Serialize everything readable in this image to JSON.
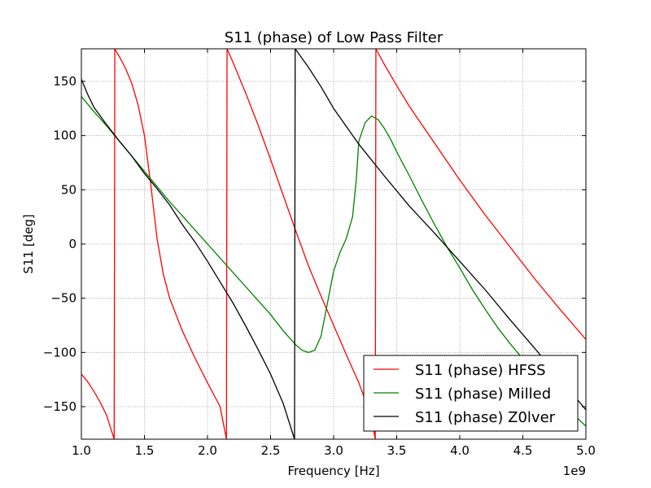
{
  "chart_data": {
    "type": "line",
    "title": "S11 (phase) of Low Pass Filter",
    "xlabel": "Frequency [Hz]",
    "ylabel": "S11 [deg]",
    "x_scale_label": "1e9",
    "xlim": [
      1.0,
      5.0
    ],
    "ylim": [
      -180,
      180
    ],
    "xticks": [
      1.0,
      1.5,
      2.0,
      2.5,
      3.0,
      3.5,
      4.0,
      4.5,
      5.0
    ],
    "xtick_labels": [
      "1.0",
      "1.5",
      "2.0",
      "2.5",
      "3.0",
      "3.5",
      "4.0",
      "4.5",
      "5.0"
    ],
    "yticks": [
      150,
      100,
      50,
      0,
      -50,
      -100,
      -150
    ],
    "ytick_labels": [
      "150",
      "100",
      "50",
      "0",
      "−50",
      "−100",
      "−150"
    ],
    "grid": true,
    "legend_position": "lower-right",
    "series": [
      {
        "name": "S11 (phase) HFSS",
        "color": "#ff0000",
        "points": [
          [
            1.0,
            -120
          ],
          [
            1.05,
            -127
          ],
          [
            1.1,
            -136
          ],
          [
            1.15,
            -146
          ],
          [
            1.2,
            -158
          ],
          [
            1.26,
            -180
          ],
          [
            1.265,
            180
          ],
          [
            1.3,
            173
          ],
          [
            1.35,
            162
          ],
          [
            1.4,
            148
          ],
          [
            1.45,
            128
          ],
          [
            1.5,
            100
          ],
          [
            1.55,
            55
          ],
          [
            1.6,
            5
          ],
          [
            1.65,
            -28
          ],
          [
            1.7,
            -50
          ],
          [
            1.8,
            -80
          ],
          [
            1.9,
            -105
          ],
          [
            2.0,
            -128
          ],
          [
            2.1,
            -150
          ],
          [
            2.15,
            -180
          ],
          [
            2.155,
            180
          ],
          [
            2.2,
            168
          ],
          [
            2.3,
            140
          ],
          [
            2.4,
            110
          ],
          [
            2.5,
            78
          ],
          [
            2.6,
            45
          ],
          [
            2.7,
            12
          ],
          [
            2.8,
            -20
          ],
          [
            2.9,
            -48
          ],
          [
            3.0,
            -75
          ],
          [
            3.1,
            -102
          ],
          [
            3.2,
            -128
          ],
          [
            3.3,
            -160
          ],
          [
            3.33,
            -180
          ],
          [
            3.335,
            180
          ],
          [
            3.4,
            166
          ],
          [
            3.5,
            146
          ],
          [
            3.6,
            127
          ],
          [
            3.7,
            110
          ],
          [
            3.8,
            93
          ],
          [
            3.9,
            76
          ],
          [
            4.0,
            59
          ],
          [
            4.2,
            27
          ],
          [
            4.4,
            -3
          ],
          [
            4.6,
            -33
          ],
          [
            4.8,
            -61
          ],
          [
            5.0,
            -88
          ]
        ]
      },
      {
        "name": "S11 (phase) Milled",
        "color": "#008000",
        "points": [
          [
            1.0,
            136
          ],
          [
            1.1,
            122
          ],
          [
            1.2,
            109
          ],
          [
            1.3,
            95
          ],
          [
            1.4,
            81
          ],
          [
            1.5,
            67
          ],
          [
            1.6,
            53
          ],
          [
            1.7,
            39
          ],
          [
            1.8,
            26
          ],
          [
            1.9,
            13
          ],
          [
            2.0,
            0
          ],
          [
            2.1,
            -13
          ],
          [
            2.2,
            -26
          ],
          [
            2.3,
            -39
          ],
          [
            2.4,
            -52
          ],
          [
            2.5,
            -65
          ],
          [
            2.6,
            -80
          ],
          [
            2.7,
            -93
          ],
          [
            2.75,
            -98
          ],
          [
            2.8,
            -100
          ],
          [
            2.85,
            -98
          ],
          [
            2.9,
            -85
          ],
          [
            2.95,
            -55
          ],
          [
            3.0,
            -25
          ],
          [
            3.05,
            -8
          ],
          [
            3.1,
            5
          ],
          [
            3.15,
            25
          ],
          [
            3.18,
            60
          ],
          [
            3.2,
            95
          ],
          [
            3.25,
            112
          ],
          [
            3.3,
            118
          ],
          [
            3.35,
            115
          ],
          [
            3.4,
            107
          ],
          [
            3.45,
            97
          ],
          [
            3.5,
            85
          ],
          [
            3.6,
            63
          ],
          [
            3.7,
            40
          ],
          [
            3.8,
            18
          ],
          [
            3.9,
            -3
          ],
          [
            4.0,
            -22
          ],
          [
            4.1,
            -42
          ],
          [
            4.2,
            -60
          ],
          [
            4.3,
            -77
          ],
          [
            4.4,
            -92
          ],
          [
            4.5,
            -106
          ],
          [
            4.6,
            -119
          ],
          [
            4.7,
            -132
          ],
          [
            4.8,
            -145
          ],
          [
            4.9,
            -157
          ],
          [
            5.0,
            -168
          ]
        ]
      },
      {
        "name": "S11 (phase) Z0lver",
        "color": "#000000",
        "points": [
          [
            1.0,
            152
          ],
          [
            1.05,
            138
          ],
          [
            1.1,
            126
          ],
          [
            1.2,
            110
          ],
          [
            1.3,
            95
          ],
          [
            1.4,
            81
          ],
          [
            1.5,
            65
          ],
          [
            1.6,
            51
          ],
          [
            1.7,
            36
          ],
          [
            1.8,
            18
          ],
          [
            1.9,
            2
          ],
          [
            2.0,
            -16
          ],
          [
            2.1,
            -35
          ],
          [
            2.2,
            -54
          ],
          [
            2.3,
            -75
          ],
          [
            2.4,
            -97
          ],
          [
            2.5,
            -120
          ],
          [
            2.6,
            -147
          ],
          [
            2.69,
            -180
          ],
          [
            2.695,
            180
          ],
          [
            2.8,
            163
          ],
          [
            2.9,
            145
          ],
          [
            3.0,
            125
          ],
          [
            3.2,
            92
          ],
          [
            3.4,
            63
          ],
          [
            3.6,
            35
          ],
          [
            3.8,
            10
          ],
          [
            4.0,
            -16
          ],
          [
            4.2,
            -42
          ],
          [
            4.4,
            -70
          ],
          [
            4.6,
            -97
          ],
          [
            4.8,
            -125
          ],
          [
            5.0,
            -153
          ]
        ]
      }
    ]
  }
}
